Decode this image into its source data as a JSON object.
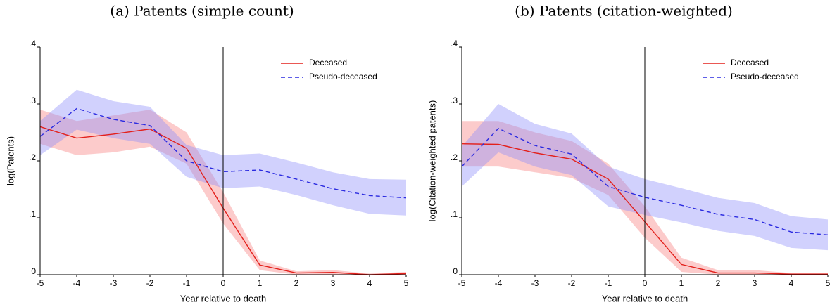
{
  "chart_data": [
    {
      "type": "line",
      "title": "(a) Patents (simple count)",
      "xlabel": "Year relative to death",
      "ylabel": "log(Patents)",
      "x": [
        -5,
        -4,
        -3,
        -2,
        -1,
        0,
        1,
        2,
        3,
        4,
        5
      ],
      "xlim": [
        -5,
        5
      ],
      "xticks": [
        -5,
        -4,
        -3,
        -2,
        -1,
        0,
        1,
        2,
        3,
        4,
        5
      ],
      "ylim": [
        0,
        0.4
      ],
      "yticks": [
        0,
        {
          "value": 0.1,
          "label": ".1"
        },
        {
          "value": 0.2,
          "label": ".2"
        },
        {
          "value": 0.3,
          "label": ".3"
        },
        {
          "value": 0.4,
          "label": ".4"
        }
      ],
      "vline": 0,
      "legend": "top-right",
      "series": [
        {
          "name": "Deceased",
          "color": "#e3201b",
          "band_color": "rgba(248,140,140,0.45)",
          "dashed": false,
          "values": [
            0.26,
            0.24,
            0.247,
            0.256,
            0.222,
            0.117,
            0.017,
            0.003,
            0.004,
            0.0,
            0.002
          ],
          "lower": [
            0.23,
            0.21,
            0.215,
            0.225,
            0.195,
            0.09,
            0.008,
            0,
            0,
            0,
            0
          ],
          "upper": [
            0.29,
            0.27,
            0.28,
            0.29,
            0.25,
            0.145,
            0.025,
            0.006,
            0.008,
            0.002,
            0.005
          ]
        },
        {
          "name": "Pseudo-deceased",
          "color": "#2a2ae0",
          "band_color": "rgba(140,140,250,0.4)",
          "dashed": true,
          "values": [
            0.243,
            0.292,
            0.273,
            0.262,
            0.2,
            0.181,
            0.184,
            0.168,
            0.151,
            0.139,
            0.135
          ],
          "lower": [
            0.21,
            0.255,
            0.24,
            0.23,
            0.172,
            0.152,
            0.155,
            0.14,
            0.122,
            0.107,
            0.104
          ],
          "upper": [
            0.27,
            0.325,
            0.305,
            0.295,
            0.228,
            0.21,
            0.213,
            0.197,
            0.18,
            0.168,
            0.167
          ]
        }
      ]
    },
    {
      "type": "line",
      "title": "(b) Patents (citation-weighted)",
      "xlabel": "Year relative to death",
      "ylabel": "log(Citation-weighted patents)",
      "x": [
        -5,
        -4,
        -3,
        -2,
        -1,
        0,
        1,
        2,
        3,
        4,
        5
      ],
      "xlim": [
        -5,
        5
      ],
      "xticks": [
        -5,
        -4,
        -3,
        -2,
        -1,
        0,
        1,
        2,
        3,
        4,
        5
      ],
      "ylim": [
        0,
        0.4
      ],
      "yticks": [
        0,
        {
          "value": 0.1,
          "label": ".1"
        },
        {
          "value": 0.2,
          "label": ".2"
        },
        {
          "value": 0.3,
          "label": ".3"
        },
        {
          "value": 0.4,
          "label": ".4"
        }
      ],
      "vline": 0,
      "legend": "top-right",
      "series": [
        {
          "name": "Deceased",
          "color": "#e3201b",
          "band_color": "rgba(248,140,140,0.45)",
          "dashed": false,
          "values": [
            0.23,
            0.229,
            0.214,
            0.203,
            0.168,
            0.093,
            0.018,
            0.003,
            0.003,
            0.001,
            0.001
          ],
          "lower": [
            0.19,
            0.19,
            0.18,
            0.17,
            0.14,
            0.065,
            0.005,
            0,
            0,
            0,
            0
          ],
          "upper": [
            0.27,
            0.27,
            0.25,
            0.235,
            0.195,
            0.12,
            0.03,
            0.008,
            0.008,
            0.003,
            0.003
          ]
        },
        {
          "name": "Pseudo-deceased",
          "color": "#2a2ae0",
          "band_color": "rgba(140,140,250,0.4)",
          "dashed": true,
          "values": [
            0.19,
            0.257,
            0.227,
            0.212,
            0.155,
            0.136,
            0.122,
            0.106,
            0.097,
            0.075,
            0.07
          ],
          "lower": [
            0.155,
            0.215,
            0.19,
            0.175,
            0.12,
            0.105,
            0.092,
            0.077,
            0.068,
            0.047,
            0.043
          ],
          "upper": [
            0.225,
            0.3,
            0.265,
            0.248,
            0.19,
            0.168,
            0.152,
            0.135,
            0.126,
            0.103,
            0.097
          ]
        }
      ]
    }
  ]
}
